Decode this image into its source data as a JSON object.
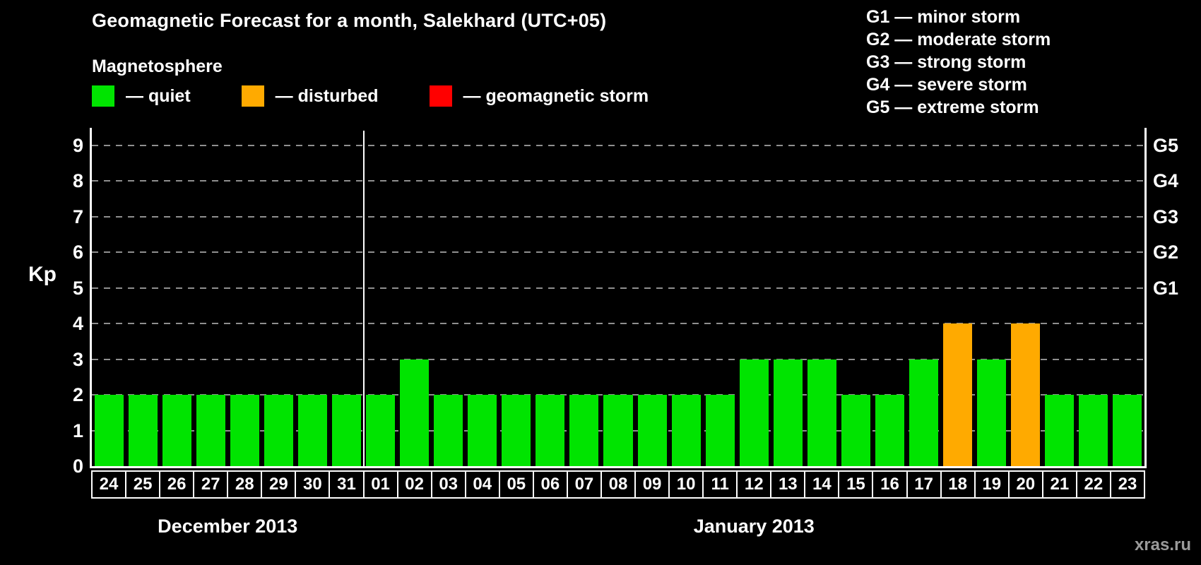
{
  "title": "Geomagnetic Forecast for a month, Salekhard (UTC+05)",
  "magnetosphere": {
    "heading": "Magnetosphere",
    "items": [
      {
        "label": "— quiet",
        "status": "quiet",
        "color": "#00e400"
      },
      {
        "label": "— disturbed",
        "status": "disturbed",
        "color": "#ffaa00"
      },
      {
        "label": "— geomagnetic storm",
        "status": "storm",
        "color": "#ff0000"
      }
    ]
  },
  "storm_scale": [
    "G1 — minor storm",
    "G2 — moderate storm",
    "G3 — strong storm",
    "G4 — severe storm",
    "G5 — extreme storm"
  ],
  "watermark": "xras.ru",
  "chart_data": {
    "type": "bar",
    "title": "Geomagnetic Forecast for a month, Salekhard (UTC+05)",
    "ylabel": "Kp",
    "xlabel": "",
    "ylim": [
      0,
      9
    ],
    "yticks": [
      0,
      1,
      2,
      3,
      4,
      5,
      6,
      7,
      8,
      9
    ],
    "grid": "horizontal-dashed",
    "legend_position": "top-left",
    "right_axis": [
      {
        "label": "G1",
        "kp": 5
      },
      {
        "label": "G2",
        "kp": 6
      },
      {
        "label": "G3",
        "kp": 7
      },
      {
        "label": "G4",
        "kp": 8
      },
      {
        "label": "G5",
        "kp": 9
      }
    ],
    "status_colors": {
      "quiet": "#00e400",
      "disturbed": "#ffaa00",
      "storm": "#ff0000"
    },
    "months": [
      {
        "label": "December 2013",
        "count": 8
      },
      {
        "label": "January 2013",
        "count": 23
      }
    ],
    "bars": [
      {
        "day": "24",
        "month": "December 2013",
        "kp": 2,
        "status": "quiet"
      },
      {
        "day": "25",
        "month": "December 2013",
        "kp": 2,
        "status": "quiet"
      },
      {
        "day": "26",
        "month": "December 2013",
        "kp": 2,
        "status": "quiet"
      },
      {
        "day": "27",
        "month": "December 2013",
        "kp": 2,
        "status": "quiet"
      },
      {
        "day": "28",
        "month": "December 2013",
        "kp": 2,
        "status": "quiet"
      },
      {
        "day": "29",
        "month": "December 2013",
        "kp": 2,
        "status": "quiet"
      },
      {
        "day": "30",
        "month": "December 2013",
        "kp": 2,
        "status": "quiet"
      },
      {
        "day": "31",
        "month": "December 2013",
        "kp": 2,
        "status": "quiet"
      },
      {
        "day": "01",
        "month": "January 2013",
        "kp": 2,
        "status": "quiet"
      },
      {
        "day": "02",
        "month": "January 2013",
        "kp": 3,
        "status": "quiet"
      },
      {
        "day": "03",
        "month": "January 2013",
        "kp": 2,
        "status": "quiet"
      },
      {
        "day": "04",
        "month": "January 2013",
        "kp": 2,
        "status": "quiet"
      },
      {
        "day": "05",
        "month": "January 2013",
        "kp": 2,
        "status": "quiet"
      },
      {
        "day": "06",
        "month": "January 2013",
        "kp": 2,
        "status": "quiet"
      },
      {
        "day": "07",
        "month": "January 2013",
        "kp": 2,
        "status": "quiet"
      },
      {
        "day": "08",
        "month": "January 2013",
        "kp": 2,
        "status": "quiet"
      },
      {
        "day": "09",
        "month": "January 2013",
        "kp": 2,
        "status": "quiet"
      },
      {
        "day": "10",
        "month": "January 2013",
        "kp": 2,
        "status": "quiet"
      },
      {
        "day": "11",
        "month": "January 2013",
        "kp": 2,
        "status": "quiet"
      },
      {
        "day": "12",
        "month": "January 2013",
        "kp": 3,
        "status": "quiet"
      },
      {
        "day": "13",
        "month": "January 2013",
        "kp": 3,
        "status": "quiet"
      },
      {
        "day": "14",
        "month": "January 2013",
        "kp": 3,
        "status": "quiet"
      },
      {
        "day": "15",
        "month": "January 2013",
        "kp": 2,
        "status": "quiet"
      },
      {
        "day": "16",
        "month": "January 2013",
        "kp": 2,
        "status": "quiet"
      },
      {
        "day": "17",
        "month": "January 2013",
        "kp": 3,
        "status": "quiet"
      },
      {
        "day": "18",
        "month": "January 2013",
        "kp": 4,
        "status": "disturbed"
      },
      {
        "day": "19",
        "month": "January 2013",
        "kp": 3,
        "status": "quiet"
      },
      {
        "day": "20",
        "month": "January 2013",
        "kp": 4,
        "status": "disturbed"
      },
      {
        "day": "21",
        "month": "January 2013",
        "kp": 2,
        "status": "quiet"
      },
      {
        "day": "22",
        "month": "January 2013",
        "kp": 2,
        "status": "quiet"
      },
      {
        "day": "23",
        "month": "January 2013",
        "kp": 2,
        "status": "quiet"
      }
    ]
  }
}
